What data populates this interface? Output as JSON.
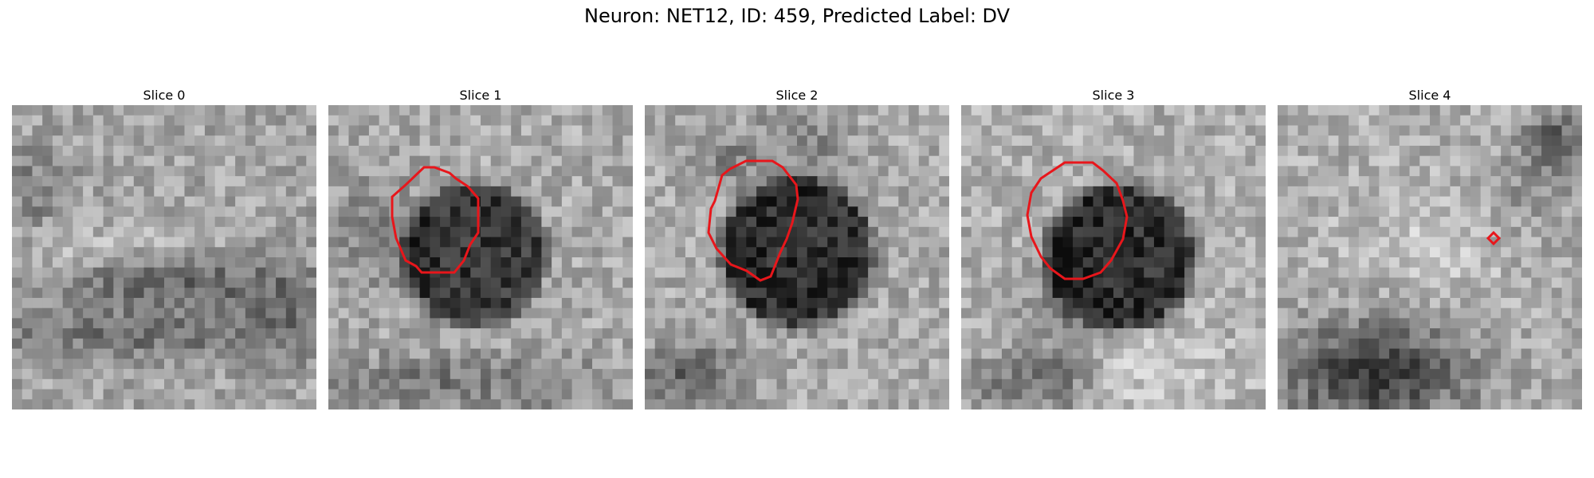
{
  "figure": {
    "title": "Neuron: NET12, ID: 459, Predicted Label: DV",
    "contour_color": "#e8161b"
  },
  "panels": [
    {
      "title": "Slice 0",
      "image": "grayscale-em-patch",
      "has_contour": false
    },
    {
      "title": "Slice 1",
      "image": "grayscale-em-patch",
      "has_contour": true
    },
    {
      "title": "Slice 2",
      "image": "grayscale-em-patch",
      "has_contour": true
    },
    {
      "title": "Slice 3",
      "image": "grayscale-em-patch",
      "has_contour": true
    },
    {
      "title": "Slice 4",
      "image": "grayscale-em-patch",
      "has_contour": true
    }
  ]
}
